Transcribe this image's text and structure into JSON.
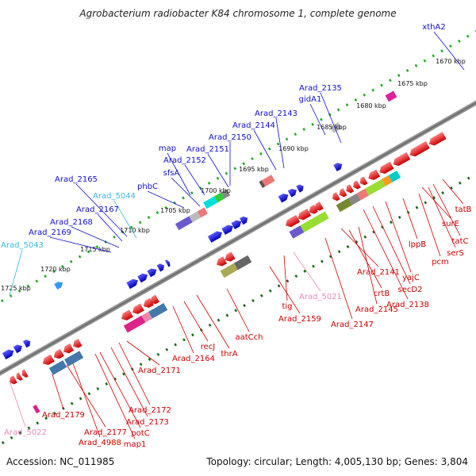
{
  "title": "Agrobacterium radiobacter K84 chromosome 1, complete genome",
  "footer": {
    "accession": "Accession: NC_011985",
    "summary": "Topology: circular; Length: 4,005,130 bp; Genes: 3,804"
  },
  "colors": {
    "forward_label": "#1010cc",
    "forward_label_light": "#33bbdd",
    "reverse_label": "#cc0000",
    "reverse_label_light": "#e888bb",
    "forward_gene": "#1a1aee",
    "reverse_gene": "#ee1111",
    "forward_tick": "#22aa22",
    "reverse_tick": "#116611",
    "backbone": "#888888"
  },
  "kbp_labels": [
    "1670 kbp",
    "1675 kbp",
    "1680 kbp",
    "1685 kbp",
    "1690 kbp",
    "1695 kbp",
    "1700 kbp",
    "1705 kbp",
    "1710 kbp",
    "1715 kbp",
    "1720 kbp",
    "1725 kbp"
  ],
  "forward_labels": [
    {
      "text": "xthA2",
      "tone": "dark"
    },
    {
      "text": "Arad_2135",
      "tone": "dark"
    },
    {
      "text": "gidA1",
      "tone": "dark"
    },
    {
      "text": "Arad_2143",
      "tone": "dark"
    },
    {
      "text": "Arad_2144",
      "tone": "dark"
    },
    {
      "text": "Arad_2150",
      "tone": "dark"
    },
    {
      "text": "Arad_2151",
      "tone": "dark"
    },
    {
      "text": "map",
      "tone": "dark"
    },
    {
      "text": "Arad_2152",
      "tone": "dark"
    },
    {
      "text": "sfsA",
      "tone": "dark"
    },
    {
      "text": "phbC",
      "tone": "dark"
    },
    {
      "text": "Arad_2165",
      "tone": "dark"
    },
    {
      "text": "Arad_5044",
      "tone": "light"
    },
    {
      "text": "Arad_2167",
      "tone": "dark"
    },
    {
      "text": "Arad_2168",
      "tone": "dark"
    },
    {
      "text": "Arad_2169",
      "tone": "dark"
    },
    {
      "text": "Arad_5043",
      "tone": "light"
    }
  ],
  "reverse_labels": [
    {
      "text": "tatB",
      "tone": "dark"
    },
    {
      "text": "tatC",
      "tone": "dark"
    },
    {
      "text": "surE",
      "tone": "dark"
    },
    {
      "text": "serS",
      "tone": "dark"
    },
    {
      "text": "pcm",
      "tone": "dark"
    },
    {
      "text": "lppB",
      "tone": "dark"
    },
    {
      "text": "yajC",
      "tone": "dark"
    },
    {
      "text": "secD2",
      "tone": "dark"
    },
    {
      "text": "Arad_2138",
      "tone": "dark"
    },
    {
      "text": "Arad_2141",
      "tone": "dark"
    },
    {
      "text": "crtB",
      "tone": "dark"
    },
    {
      "text": "Arad_2145",
      "tone": "dark"
    },
    {
      "text": "Arad_2147",
      "tone": "dark"
    },
    {
      "text": "Arad_5021",
      "tone": "light"
    },
    {
      "text": "tig",
      "tone": "dark"
    },
    {
      "text": "Arad_2159",
      "tone": "dark"
    },
    {
      "text": "aatCch",
      "tone": "dark"
    },
    {
      "text": "thrA",
      "tone": "dark"
    },
    {
      "text": "recJ",
      "tone": "dark"
    },
    {
      "text": "Arad_2164",
      "tone": "dark"
    },
    {
      "text": "Arad_2171",
      "tone": "dark"
    },
    {
      "text": "Arad_2172",
      "tone": "dark"
    },
    {
      "text": "Arad_2173",
      "tone": "dark"
    },
    {
      "text": "potC",
      "tone": "dark"
    },
    {
      "text": "map1",
      "tone": "dark"
    },
    {
      "text": "Arad_4988",
      "tone": "dark"
    },
    {
      "text": "Arad_2177",
      "tone": "dark"
    },
    {
      "text": "Arad_2179",
      "tone": "dark"
    },
    {
      "text": "Arad_5022",
      "tone": "light"
    }
  ]
}
